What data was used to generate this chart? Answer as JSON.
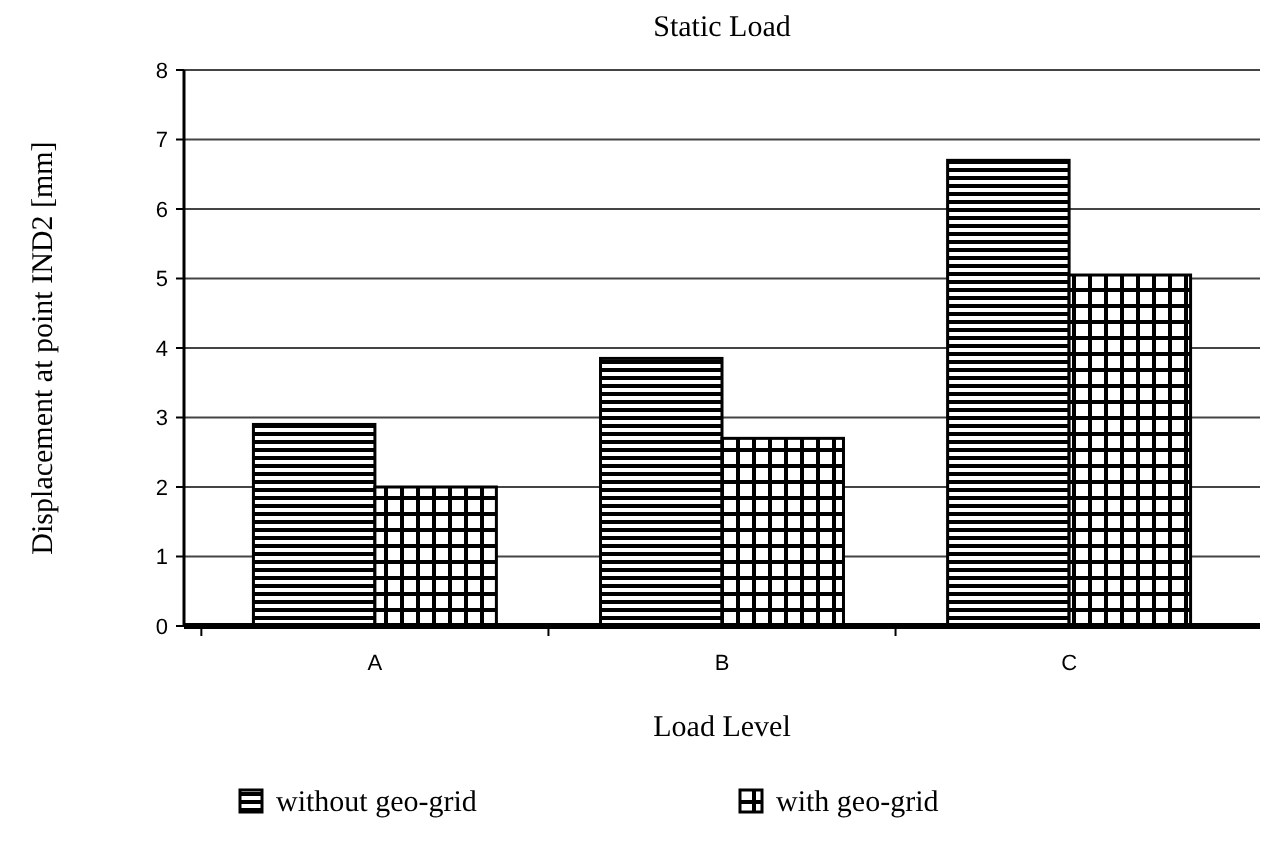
{
  "chart_data": {
    "type": "bar",
    "title": "Static Load",
    "xlabel": "Load Level",
    "ylabel": "Displacement at point IND2 [mm]",
    "categories": [
      "A",
      "B",
      "C"
    ],
    "series": [
      {
        "name": "without geo-grid",
        "color": "#000000",
        "values": [
          2.9,
          3.85,
          6.7
        ]
      },
      {
        "name": "with geo-grid",
        "color": "#000000",
        "values": [
          2.0,
          2.7,
          5.05
        ]
      }
    ],
    "ylim": [
      0,
      8
    ],
    "yticks": [
      0,
      1,
      2,
      3,
      4,
      5,
      6,
      7,
      8
    ],
    "grid": "y",
    "legend": "bottom"
  }
}
